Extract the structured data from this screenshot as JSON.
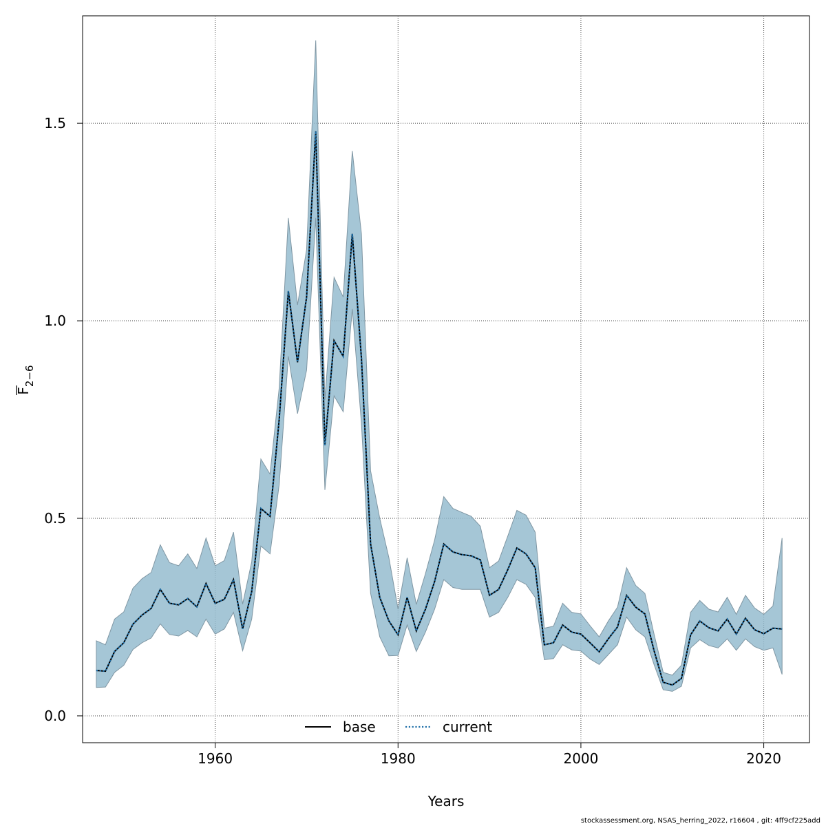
{
  "chart_data": {
    "type": "line",
    "xlabel": "Years",
    "ylabel_main": "F",
    "ylabel_sub": "2−6",
    "xlim": [
      1945.5,
      2025
    ],
    "ylim": [
      -0.068,
      1.772
    ],
    "xticks": [
      1960,
      1980,
      2000,
      2020
    ],
    "yticks": [
      0.0,
      0.5,
      1.0,
      1.5
    ],
    "xtick_labels": [
      "1960",
      "1980",
      "2000",
      "2020"
    ],
    "ytick_labels": [
      "0.0",
      "0.5",
      "1.0",
      "1.5"
    ],
    "grid": true,
    "legend_position": "bottom",
    "colors": {
      "band": "#8fb8cc",
      "band_edge": "#7f96a3",
      "current": "#1f6fa8",
      "base": "#000000"
    },
    "x": [
      1947,
      1948,
      1949,
      1950,
      1951,
      1952,
      1953,
      1954,
      1955,
      1956,
      1957,
      1958,
      1959,
      1960,
      1961,
      1962,
      1963,
      1964,
      1965,
      1966,
      1967,
      1968,
      1969,
      1970,
      1971,
      1972,
      1973,
      1974,
      1975,
      1976,
      1977,
      1978,
      1979,
      1980,
      1981,
      1982,
      1983,
      1984,
      1985,
      1986,
      1987,
      1988,
      1989,
      1990,
      1991,
      1992,
      1993,
      1994,
      1995,
      1996,
      1997,
      1998,
      1999,
      2000,
      2001,
      2002,
      2003,
      2004,
      2005,
      2006,
      2007,
      2008,
      2009,
      2010,
      2011,
      2012,
      2013,
      2014,
      2015,
      2016,
      2017,
      2018,
      2019,
      2020,
      2021,
      2022
    ],
    "series": [
      {
        "name": "base",
        "style": "solid",
        "values": [
          0.115,
          0.113,
          0.163,
          0.185,
          0.232,
          0.255,
          0.272,
          0.32,
          0.285,
          0.281,
          0.297,
          0.276,
          0.335,
          0.285,
          0.295,
          0.345,
          0.22,
          0.315,
          0.525,
          0.505,
          0.75,
          1.075,
          0.895,
          1.06,
          1.48,
          0.685,
          0.95,
          0.91,
          1.22,
          0.905,
          0.435,
          0.3,
          0.24,
          0.205,
          0.3,
          0.215,
          0.27,
          0.34,
          0.435,
          0.415,
          0.408,
          0.405,
          0.395,
          0.305,
          0.32,
          0.37,
          0.425,
          0.41,
          0.375,
          0.18,
          0.185,
          0.23,
          0.212,
          0.207,
          0.185,
          0.162,
          0.195,
          0.225,
          0.305,
          0.275,
          0.258,
          0.165,
          0.085,
          0.078,
          0.095,
          0.205,
          0.24,
          0.223,
          0.215,
          0.245,
          0.207,
          0.247,
          0.218,
          0.208,
          0.222,
          0.22
        ]
      },
      {
        "name": "current",
        "style": "dotted",
        "values": [
          0.115,
          0.113,
          0.163,
          0.185,
          0.232,
          0.255,
          0.272,
          0.32,
          0.285,
          0.281,
          0.297,
          0.276,
          0.335,
          0.285,
          0.295,
          0.345,
          0.22,
          0.315,
          0.525,
          0.505,
          0.75,
          1.075,
          0.895,
          1.06,
          1.48,
          0.685,
          0.95,
          0.91,
          1.22,
          0.905,
          0.435,
          0.3,
          0.24,
          0.205,
          0.3,
          0.215,
          0.27,
          0.34,
          0.435,
          0.415,
          0.408,
          0.405,
          0.395,
          0.305,
          0.32,
          0.37,
          0.425,
          0.41,
          0.375,
          0.18,
          0.185,
          0.23,
          0.212,
          0.207,
          0.185,
          0.162,
          0.195,
          0.225,
          0.305,
          0.275,
          0.258,
          0.165,
          0.085,
          0.078,
          0.095,
          0.205,
          0.24,
          0.223,
          0.215,
          0.245,
          0.207,
          0.247,
          0.218,
          0.208,
          0.222,
          0.22
        ]
      }
    ],
    "band_upper": [
      0.19,
      0.18,
      0.245,
      0.263,
      0.323,
      0.347,
      0.363,
      0.433,
      0.388,
      0.38,
      0.41,
      0.373,
      0.45,
      0.38,
      0.393,
      0.465,
      0.283,
      0.39,
      0.65,
      0.612,
      0.83,
      1.26,
      1.04,
      1.18,
      1.71,
      0.8,
      1.11,
      1.06,
      1.43,
      1.22,
      0.62,
      0.5,
      0.4,
      0.27,
      0.4,
      0.282,
      0.36,
      0.445,
      0.555,
      0.525,
      0.515,
      0.505,
      0.48,
      0.375,
      0.392,
      0.455,
      0.52,
      0.508,
      0.465,
      0.222,
      0.227,
      0.285,
      0.262,
      0.258,
      0.228,
      0.2,
      0.24,
      0.275,
      0.375,
      0.33,
      0.31,
      0.207,
      0.11,
      0.103,
      0.128,
      0.262,
      0.292,
      0.27,
      0.263,
      0.3,
      0.257,
      0.305,
      0.273,
      0.257,
      0.278,
      0.45
    ],
    "band_lower": [
      0.072,
      0.073,
      0.11,
      0.128,
      0.168,
      0.185,
      0.197,
      0.233,
      0.206,
      0.202,
      0.216,
      0.2,
      0.245,
      0.207,
      0.22,
      0.262,
      0.165,
      0.245,
      0.43,
      0.41,
      0.585,
      0.91,
      0.765,
      0.875,
      1.26,
      0.572,
      0.81,
      0.77,
      1.03,
      0.74,
      0.31,
      0.2,
      0.152,
      0.153,
      0.23,
      0.163,
      0.212,
      0.27,
      0.345,
      0.325,
      0.32,
      0.32,
      0.32,
      0.25,
      0.262,
      0.3,
      0.345,
      0.333,
      0.3,
      0.142,
      0.145,
      0.18,
      0.167,
      0.164,
      0.144,
      0.13,
      0.155,
      0.18,
      0.25,
      0.218,
      0.2,
      0.13,
      0.066,
      0.062,
      0.075,
      0.172,
      0.193,
      0.178,
      0.172,
      0.195,
      0.166,
      0.195,
      0.175,
      0.166,
      0.172,
      0.105
    ]
  },
  "legend": {
    "items": [
      "base",
      "current"
    ]
  },
  "footer_text": "stockassessment.org, NSAS_herring_2022, r16604 , git: 4ff9cf225add"
}
